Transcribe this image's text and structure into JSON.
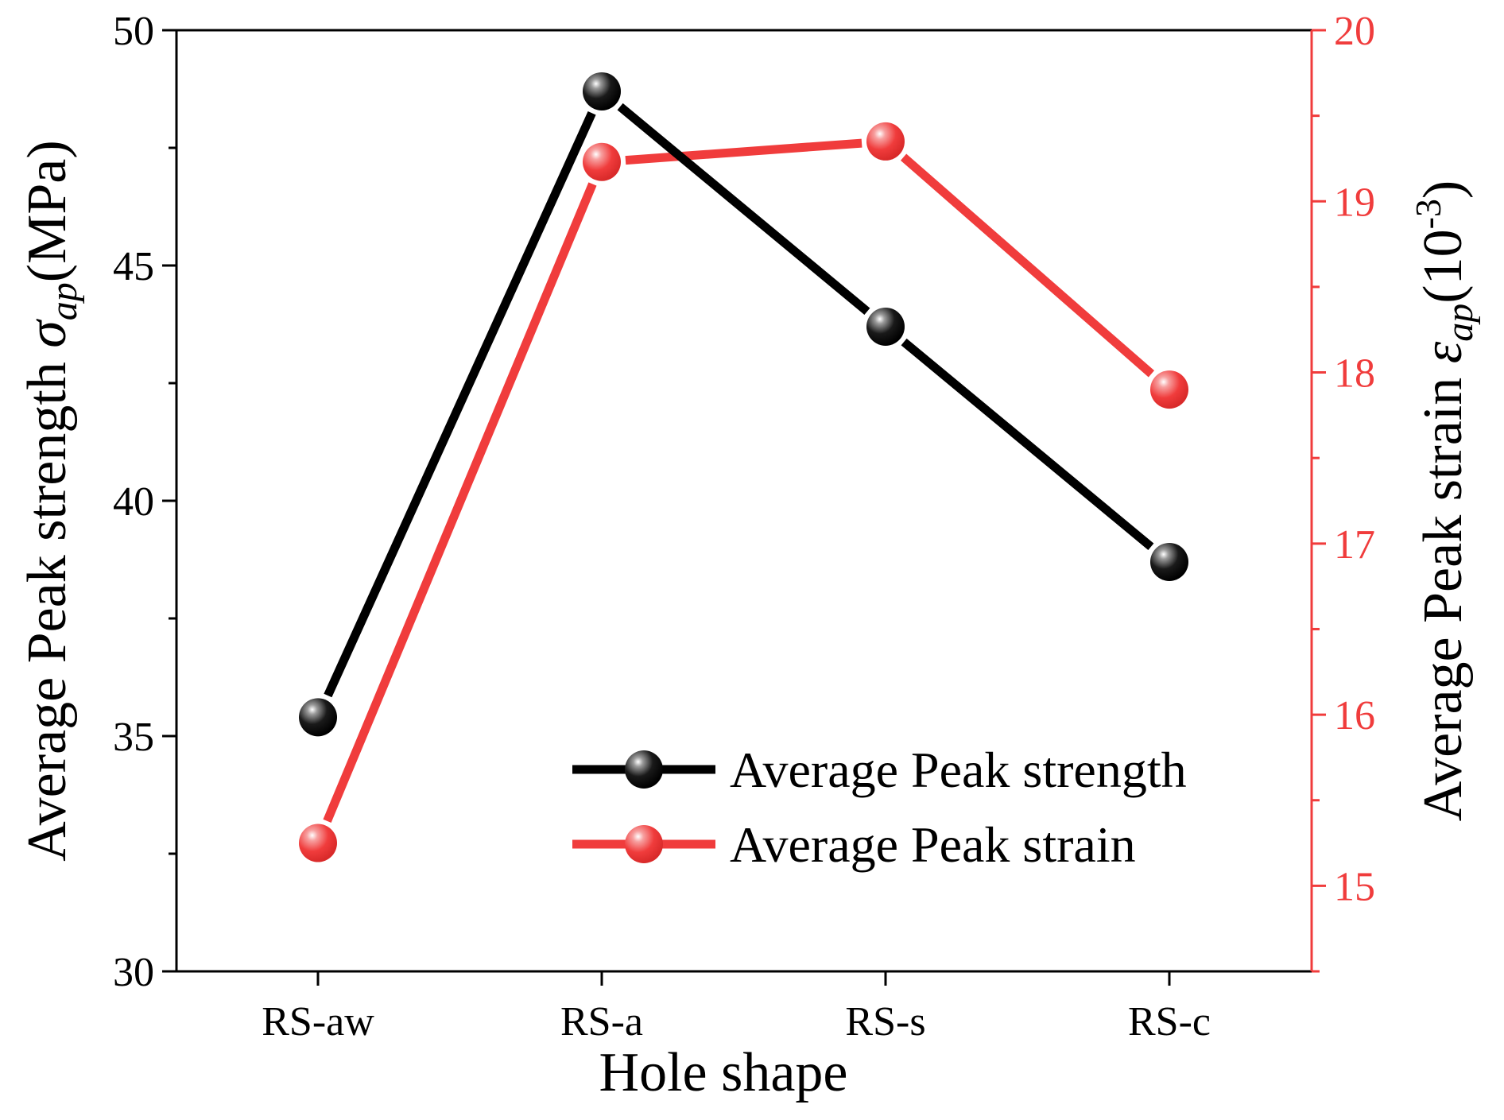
{
  "chart_data": {
    "type": "line",
    "categories": [
      "RS-aw",
      "RS-a",
      "RS-s",
      "RS-c"
    ],
    "xlabel": "Hole shape",
    "ylabel_left": {
      "prefix": "Average Peak strength ",
      "symbol": "σ",
      "subscript": "ap",
      "suffix": "(MPa)"
    },
    "ylabel_right": {
      "prefix": "Average Peak strain ",
      "symbol": "ε",
      "subscript": "ap",
      "suffix_open": "(10",
      "superscript": "-3",
      "suffix_close": ")"
    },
    "ylim_left": [
      30,
      50
    ],
    "yticks_left": [
      30,
      35,
      40,
      45,
      50
    ],
    "ylim_right": [
      14.5,
      20
    ],
    "yticks_right": [
      15,
      16,
      17,
      18,
      19,
      20
    ],
    "series": [
      {
        "name": "Average Peak strength",
        "axis": "left",
        "color": "#000000",
        "values": [
          35.4,
          48.7,
          43.7,
          38.7
        ]
      },
      {
        "name": "Average Peak strain",
        "axis": "right",
        "color": "#f03c3c",
        "values": [
          15.25,
          19.23,
          19.35,
          17.9
        ]
      }
    ],
    "legend_position": "bottom-right"
  }
}
